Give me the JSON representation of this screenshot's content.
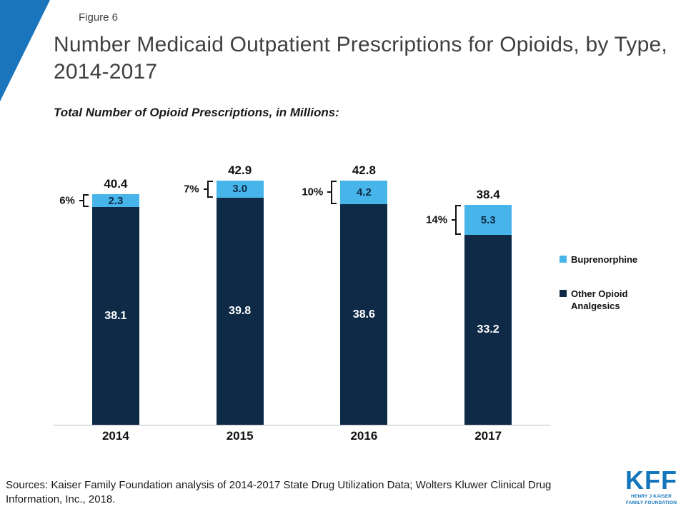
{
  "figure_label": "Figure 6",
  "title": "Number Medicaid Outpatient Prescriptions for Opioids, by Type, 2014-2017",
  "subtitle": "Total Number of Opioid Prescriptions, in Millions:",
  "chart_data": {
    "type": "bar",
    "stacked": true,
    "title": "Number Medicaid Outpatient Prescriptions for Opioids, by Type, 2014-2017",
    "subtitle": "Total Number of Opioid Prescriptions, in Millions:",
    "categories": [
      "2014",
      "2015",
      "2016",
      "2017"
    ],
    "series": [
      {
        "name": "Buprenorphine",
        "color": "#47b5e9",
        "values": [
          2.3,
          3.0,
          4.2,
          5.3
        ],
        "labels": [
          "2.3",
          "3.0",
          "4.2",
          "5.3"
        ]
      },
      {
        "name": "Other Opioid Analgesics",
        "color": "#0e2a47",
        "values": [
          38.1,
          39.8,
          38.6,
          33.2
        ],
        "labels": [
          "38.1",
          "39.8",
          "38.6",
          "33.2"
        ]
      }
    ],
    "totals": [
      40.4,
      42.9,
      42.8,
      38.4
    ],
    "total_labels": [
      "40.4",
      "42.9",
      "42.8",
      "38.4"
    ],
    "buprenorphine_share_labels": [
      "6%",
      "7%",
      "10%",
      "14%"
    ],
    "ylim": [
      0,
      45
    ],
    "grid": false,
    "legend_position": "right"
  },
  "legend": {
    "items": [
      {
        "label": "Buprenorphine",
        "color": "#47b5e9"
      },
      {
        "label": "Other Opioid Analgesics",
        "color": "#0e2a47"
      }
    ]
  },
  "footer": {
    "sources": "Sources: Kaiser Family Foundation analysis of 2014-2017 State Drug Utilization Data; Wolters Kluwer Clinical Drug Information, Inc., 2018.",
    "logo": {
      "text": "KFF",
      "tagline_line1": "HENRY J KAISER",
      "tagline_line2": "FAMILY FOUNDATION"
    }
  },
  "colors": {
    "buprenorphine": "#47b5e9",
    "other_opioid": "#0e2a47",
    "corner_triangle": "#1b75bc",
    "logo_blue": "#1375bc"
  }
}
